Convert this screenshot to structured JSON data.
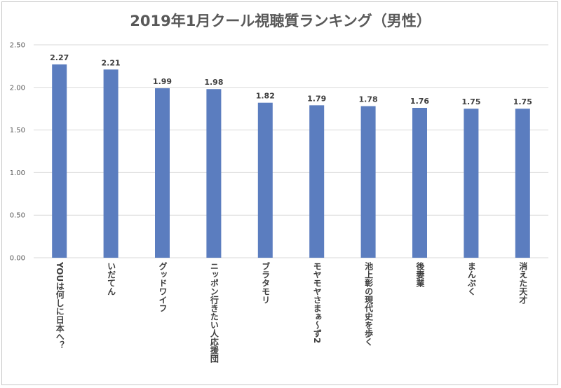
{
  "chart_data": {
    "type": "bar",
    "title": "2019年1月クール視聴質ランキング（男性）",
    "xlabel": "",
    "ylabel": "",
    "ylim": [
      0,
      2.5
    ],
    "yticks": [
      "0.00",
      "0.50",
      "1.00",
      "1.50",
      "2.00",
      "2.50"
    ],
    "grid": true,
    "legend": "none",
    "bar_color": "#5b7dbf",
    "grid_color": "#d9d9d9",
    "categories": [
      "YOUは何しに日本へ？",
      "いだてん",
      "グッドワイフ",
      "ニッポン行きたい人応援団",
      "ブラタモリ",
      "モヤモヤさまぁ～ず2",
      "池上彰の現代史を歩く",
      "後妻業",
      "まんぷく",
      "消えた天才"
    ],
    "values": [
      2.27,
      2.21,
      1.99,
      1.98,
      1.82,
      1.79,
      1.78,
      1.76,
      1.75,
      1.75
    ],
    "value_labels": [
      "2.27",
      "2.21",
      "1.99",
      "1.98",
      "1.82",
      "1.79",
      "1.78",
      "1.76",
      "1.75",
      "1.75"
    ]
  }
}
